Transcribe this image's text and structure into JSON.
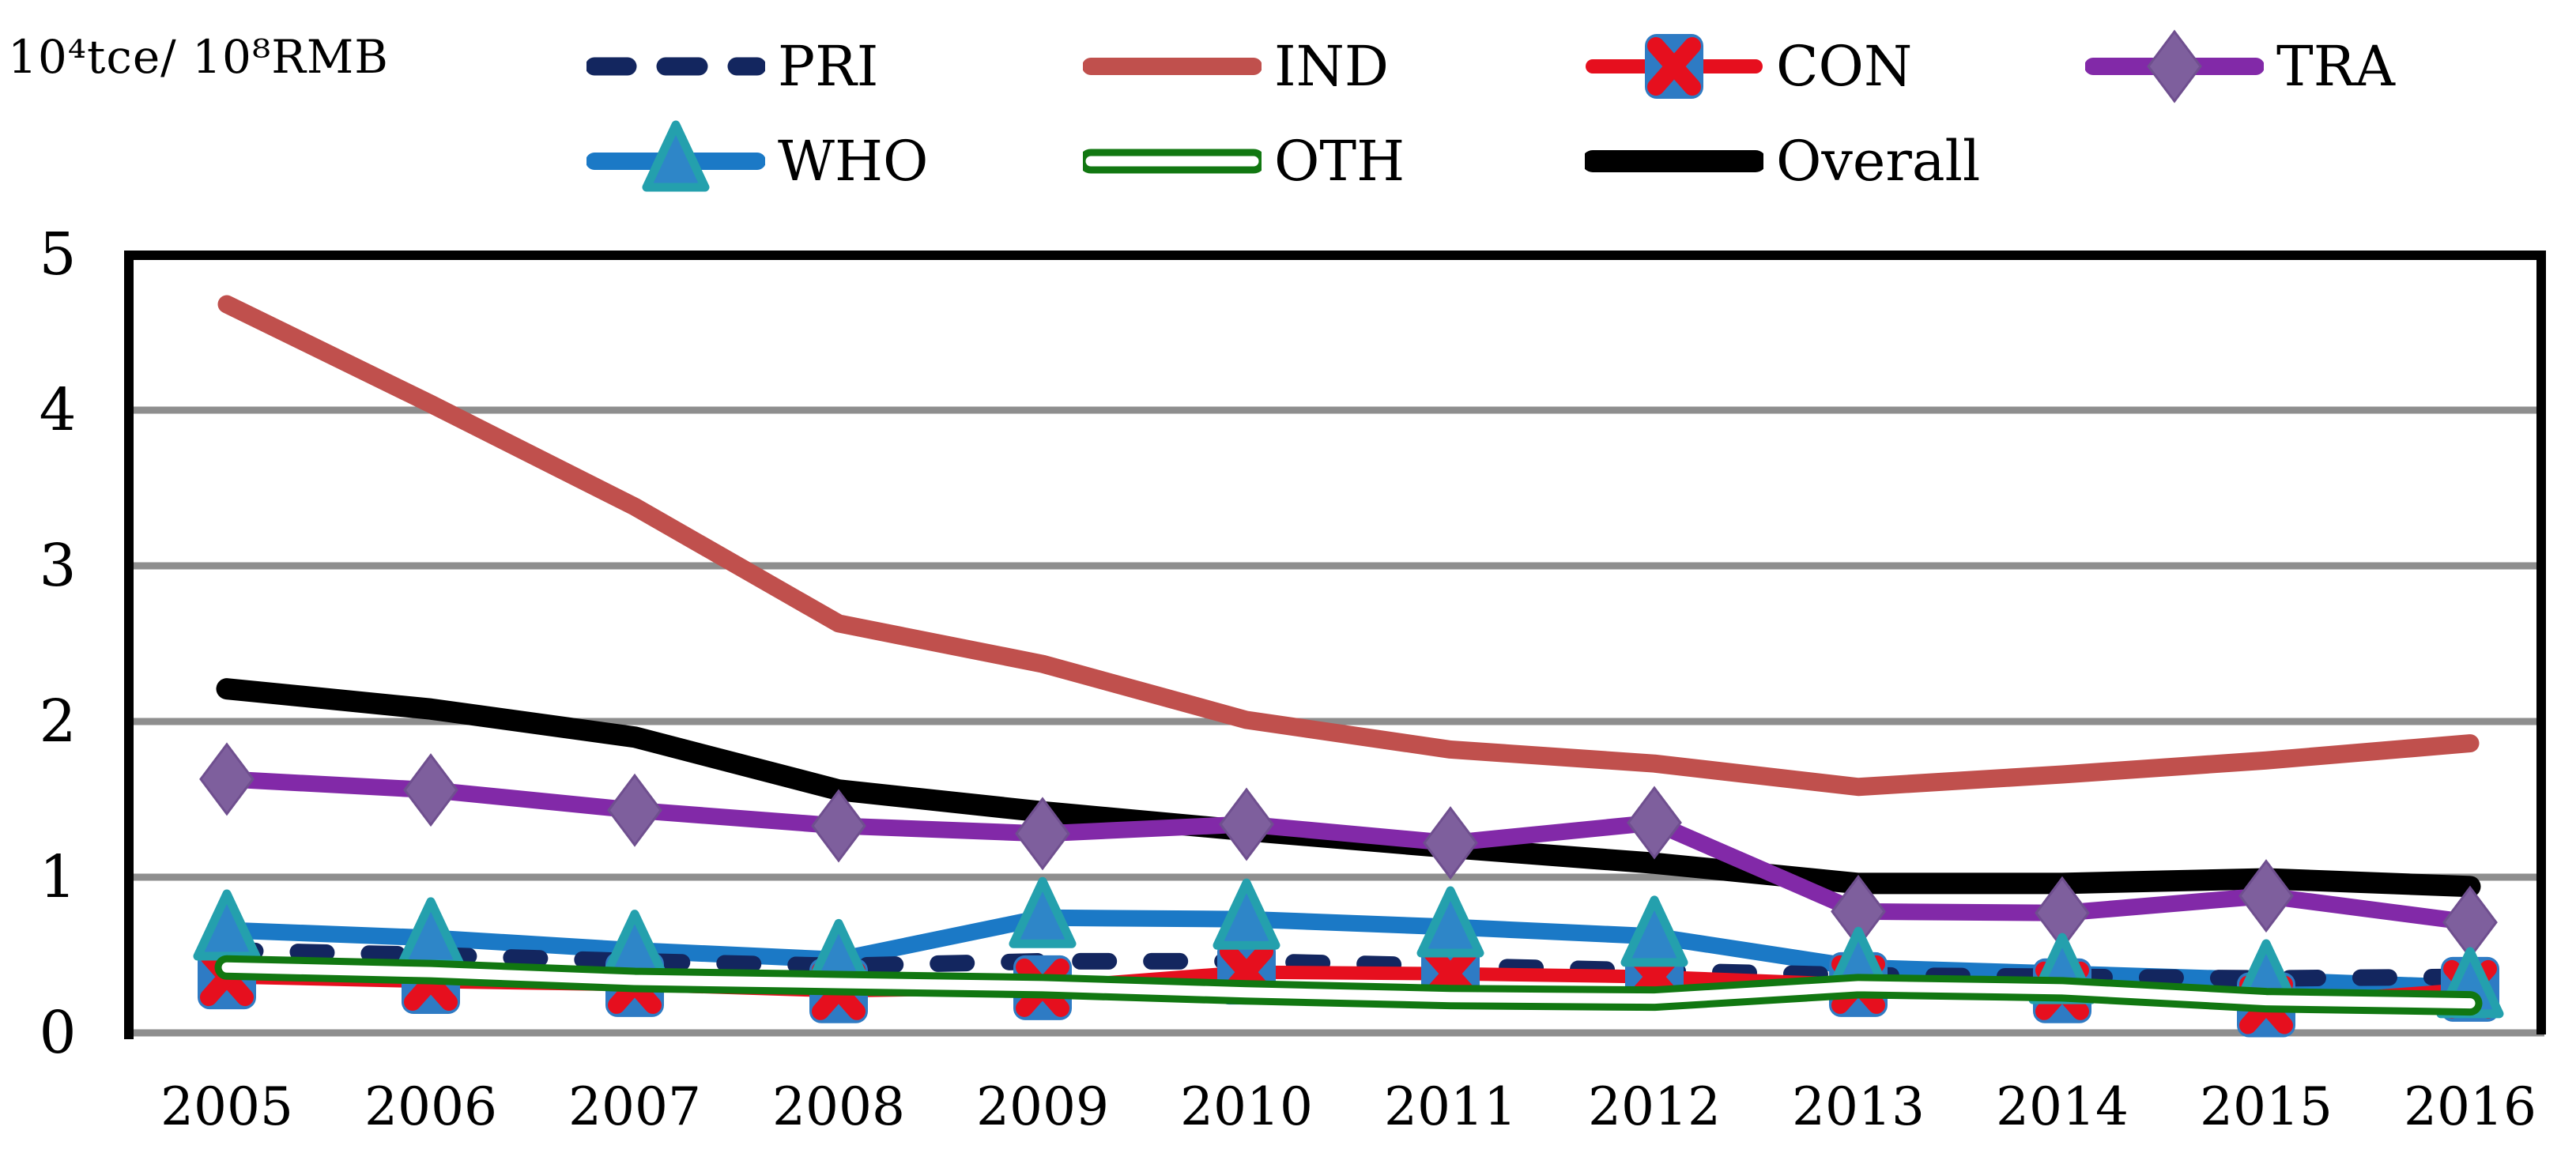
{
  "unit_label": "10⁴tce/ 10⁸RMB",
  "chart_data": {
    "type": "line",
    "title": "",
    "xlabel": "",
    "ylabel": "10⁴tce/ 10⁸RMB",
    "categories": [
      2005,
      2006,
      2007,
      2008,
      2009,
      2010,
      2011,
      2012,
      2013,
      2014,
      2015,
      2016
    ],
    "ylim": [
      0,
      5
    ],
    "yticks": [
      0,
      1,
      2,
      3,
      4,
      5
    ],
    "grid": "horizontal",
    "legend_position": "top",
    "gridline_color": "#8e8e8e",
    "series": [
      {
        "name": "PRI",
        "color": "#13265f",
        "style": "dashed",
        "marker": "none",
        "values": [
          0.53,
          0.5,
          0.46,
          0.43,
          0.46,
          0.46,
          0.43,
          0.4,
          0.37,
          0.36,
          0.35,
          0.36
        ]
      },
      {
        "name": "IND",
        "color": "#c0504d",
        "style": "solid",
        "marker": "none",
        "values": [
          4.68,
          4.04,
          3.38,
          2.63,
          2.37,
          2.01,
          1.82,
          1.73,
          1.58,
          1.66,
          1.75,
          1.86
        ]
      },
      {
        "name": "CON",
        "color": "#e60f1e",
        "style": "solid",
        "marker": "x-box",
        "marker_fill": "#2e7bc4",
        "values": [
          0.36,
          0.33,
          0.31,
          0.27,
          0.29,
          0.39,
          0.38,
          0.36,
          0.31,
          0.27,
          0.18,
          0.28
        ]
      },
      {
        "name": "TRA",
        "color": "#8229a8",
        "style": "solid",
        "marker": "diamond",
        "marker_fill": "#7e5f9d",
        "values": [
          1.63,
          1.56,
          1.43,
          1.33,
          1.28,
          1.34,
          1.22,
          1.35,
          0.78,
          0.77,
          0.88,
          0.71
        ]
      },
      {
        "name": "WHO",
        "color": "#1b79c6",
        "style": "solid",
        "marker": "triangle",
        "marker_fill": "#2e86c8",
        "marker_stroke": "#24a0ad",
        "values": [
          0.66,
          0.61,
          0.53,
          0.47,
          0.74,
          0.73,
          0.68,
          0.62,
          0.42,
          0.38,
          0.34,
          0.29
        ]
      },
      {
        "name": "OTH",
        "color": "#117711",
        "style": "hollow",
        "marker": "none",
        "values": [
          0.42,
          0.39,
          0.34,
          0.32,
          0.3,
          0.26,
          0.23,
          0.22,
          0.3,
          0.28,
          0.21,
          0.19
        ]
      },
      {
        "name": "Overall",
        "color": "#000000",
        "style": "solid-thick",
        "marker": "none",
        "values": [
          2.21,
          2.08,
          1.9,
          1.56,
          1.42,
          1.3,
          1.19,
          1.09,
          0.96,
          0.96,
          0.99,
          0.94
        ]
      }
    ]
  }
}
